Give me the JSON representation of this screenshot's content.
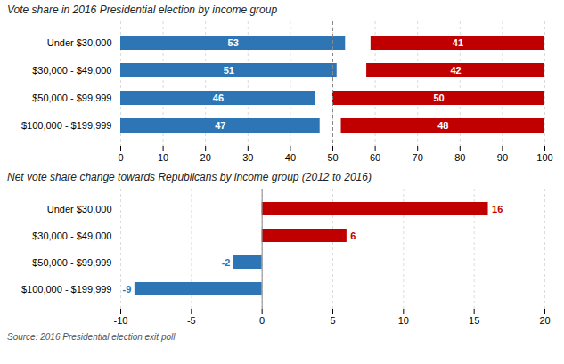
{
  "chart_data": [
    {
      "type": "bar",
      "orientation": "horizontal",
      "title": "Vote share in 2016 Presidential election by income group",
      "categories": [
        "Under $30,000",
        "$30,000 - $49,000",
        "$50,000 - $99,999",
        "$100,000 - $199,999"
      ],
      "series": [
        {
          "color": "#2E75B6",
          "values": [
            53,
            51,
            46,
            47
          ]
        },
        {
          "color": "#C00000",
          "values": [
            41,
            42,
            50,
            48
          ]
        }
      ],
      "xlim": [
        0,
        100
      ],
      "xticks": [
        0,
        10,
        20,
        30,
        40,
        50,
        60,
        70,
        80,
        90,
        100
      ],
      "reference_line": 50,
      "grid": true,
      "data_labels": true
    },
    {
      "type": "bar",
      "orientation": "horizontal",
      "title": "Net vote share change towards Republicans by income group (2012 to 2016)",
      "categories": [
        "Under $30,000",
        "$30,000 - $49,000",
        "$50,000 - $99,999",
        "$100,000 - $199,999"
      ],
      "values": [
        16,
        6,
        -2,
        -9
      ],
      "colors": [
        "#C00000",
        "#C00000",
        "#2E75B6",
        "#2E75B6"
      ],
      "xlim": [
        -10,
        20
      ],
      "xticks": [
        -10,
        -5,
        0,
        5,
        10,
        15,
        20
      ],
      "reference_line": 0,
      "grid": true,
      "data_labels": true,
      "caption": "Source: 2016 Presidential election exit poll"
    }
  ]
}
